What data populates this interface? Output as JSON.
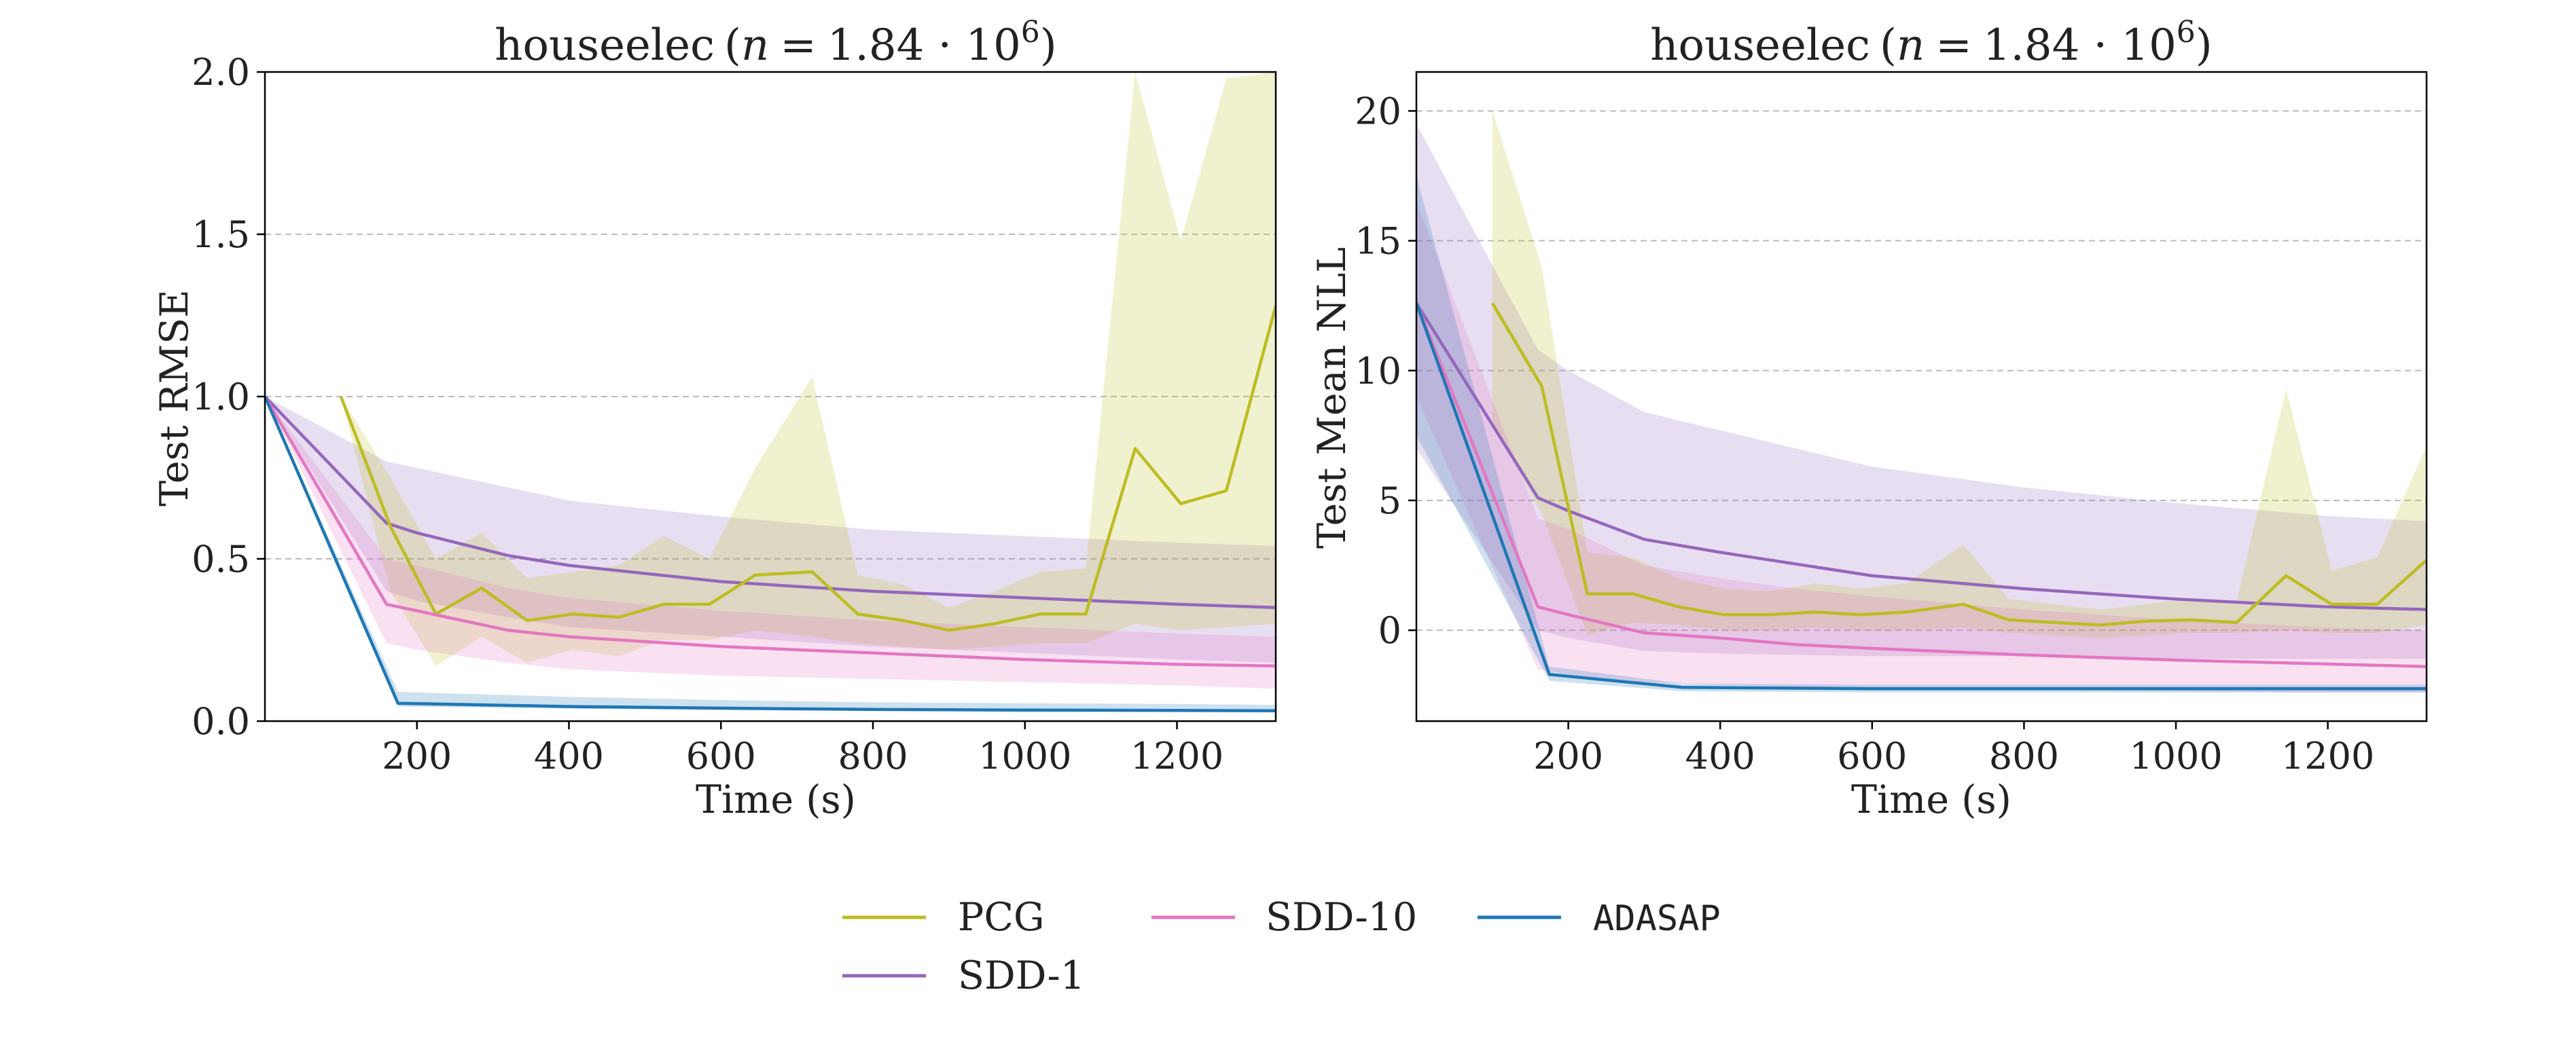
{
  "chart_data": [
    {
      "type": "line",
      "title": "houseelec (n = 1.84 · 10^6)",
      "title_parts": {
        "dataset": "houseelec",
        "n_label": "n",
        "equals": "=",
        "base": "1.84 · 10",
        "exponent": "6"
      },
      "xlabel": "Time (s)",
      "ylabel": "Test RMSE",
      "xlim": [
        0,
        1330
      ],
      "ylim": [
        0,
        2.0
      ],
      "xticks": [
        200,
        400,
        600,
        800,
        1000,
        1200
      ],
      "yticks": [
        0.0,
        0.5,
        1.0,
        1.5,
        2.0
      ],
      "ytick_labels": [
        "0.0",
        "0.5",
        "1.0",
        "1.5",
        "2.0"
      ],
      "grid": "horizontal dashed",
      "series": [
        {
          "name": "SDD-1",
          "color": "#9467bd",
          "x": [
            0,
            160,
            200,
            320,
            400,
            600,
            800,
            1000,
            1200,
            1330
          ],
          "y": [
            1.0,
            0.61,
            0.58,
            0.51,
            0.48,
            0.43,
            0.4,
            0.38,
            0.36,
            0.35
          ],
          "lower": [
            1.0,
            0.4,
            0.37,
            0.32,
            0.29,
            0.26,
            0.23,
            0.21,
            0.19,
            0.18
          ],
          "upper": [
            1.0,
            0.8,
            0.78,
            0.72,
            0.68,
            0.63,
            0.59,
            0.57,
            0.55,
            0.54
          ]
        },
        {
          "name": "PCG",
          "color": "#bcbd22",
          "x": [
            100,
            165,
            225,
            285,
            345,
            405,
            465,
            525,
            585,
            645,
            720,
            780,
            840,
            900,
            960,
            1020,
            1080,
            1145,
            1205,
            1265,
            1330
          ],
          "y": [
            1.0,
            0.6,
            0.33,
            0.41,
            0.31,
            0.33,
            0.32,
            0.36,
            0.36,
            0.45,
            0.46,
            0.33,
            0.31,
            0.28,
            0.3,
            0.33,
            0.33,
            0.84,
            0.67,
            0.71,
            1.28
          ],
          "lower": [
            1.0,
            0.4,
            0.17,
            0.26,
            0.18,
            0.22,
            0.2,
            0.25,
            0.25,
            0.28,
            0.26,
            0.24,
            0.23,
            0.22,
            0.23,
            0.24,
            0.24,
            0.3,
            0.28,
            0.29,
            0.3
          ],
          "upper": [
            1.0,
            0.75,
            0.5,
            0.58,
            0.44,
            0.46,
            0.48,
            0.57,
            0.5,
            0.78,
            1.06,
            0.45,
            0.42,
            0.35,
            0.4,
            0.46,
            0.47,
            2.0,
            1.48,
            1.98,
            2.0
          ]
        },
        {
          "name": "SDD-10",
          "color": "#e377c2",
          "x": [
            0,
            160,
            200,
            320,
            400,
            600,
            800,
            1000,
            1200,
            1330
          ],
          "y": [
            1.0,
            0.36,
            0.34,
            0.28,
            0.26,
            0.23,
            0.21,
            0.19,
            0.175,
            0.17
          ],
          "lower": [
            1.0,
            0.24,
            0.22,
            0.18,
            0.16,
            0.14,
            0.13,
            0.12,
            0.11,
            0.1
          ],
          "upper": [
            1.0,
            0.5,
            0.48,
            0.41,
            0.38,
            0.34,
            0.31,
            0.29,
            0.27,
            0.26
          ]
        },
        {
          "name": "ADASAP",
          "color": "#1f77b4",
          "x": [
            0,
            175,
            400,
            600,
            800,
            1000,
            1200,
            1330
          ],
          "y": [
            1.0,
            0.055,
            0.045,
            0.04,
            0.036,
            0.034,
            0.033,
            0.032
          ],
          "lower": [
            1.0,
            0.045,
            0.038,
            0.034,
            0.031,
            0.029,
            0.028,
            0.027
          ],
          "upper": [
            1.0,
            0.09,
            0.075,
            0.065,
            0.058,
            0.055,
            0.053,
            0.05
          ]
        }
      ]
    },
    {
      "type": "line",
      "title": "houseelec (n = 1.84 · 10^6)",
      "title_parts": {
        "dataset": "houseelec",
        "n_label": "n",
        "equals": "=",
        "base": "1.84 · 10",
        "exponent": "6"
      },
      "xlabel": "Time (s)",
      "ylabel": "Test Mean NLL",
      "xlim": [
        0,
        1330
      ],
      "ylim": [
        -3.5,
        21.5
      ],
      "xticks": [
        200,
        400,
        600,
        800,
        1000,
        1200
      ],
      "yticks": [
        0,
        5,
        10,
        15,
        20
      ],
      "ytick_labels": [
        "0",
        "5",
        "10",
        "15",
        "20"
      ],
      "grid": "horizontal dashed",
      "series": [
        {
          "name": "SDD-1",
          "color": "#9467bd",
          "x": [
            0,
            160,
            200,
            300,
            400,
            600,
            800,
            1000,
            1200,
            1330
          ],
          "y": [
            12.6,
            5.1,
            4.6,
            3.5,
            3.0,
            2.1,
            1.6,
            1.2,
            0.9,
            0.8
          ],
          "lower": [
            7.0,
            0.0,
            -0.3,
            -0.8,
            -0.9,
            -1.0,
            -1.0,
            -1.1,
            -1.1,
            -1.1
          ],
          "upper": [
            19.5,
            10.8,
            10.0,
            8.4,
            7.7,
            6.3,
            5.5,
            4.9,
            4.4,
            4.2
          ]
        },
        {
          "name": "PCG",
          "color": "#bcbd22",
          "x": [
            100,
            165,
            225,
            285,
            345,
            405,
            465,
            525,
            585,
            645,
            720,
            780,
            840,
            900,
            960,
            1020,
            1080,
            1145,
            1205,
            1265,
            1330
          ],
          "y": [
            12.6,
            9.4,
            1.4,
            1.4,
            0.9,
            0.6,
            0.6,
            0.7,
            0.6,
            0.7,
            1.0,
            0.4,
            0.3,
            0.2,
            0.35,
            0.4,
            0.3,
            2.1,
            1.0,
            1.0,
            2.7
          ],
          "lower": [
            8.0,
            4.5,
            -0.2,
            0.3,
            0.2,
            0.0,
            0.0,
            0.1,
            0.0,
            0.0,
            0.1,
            -0.1,
            -0.2,
            -0.3,
            -0.2,
            -0.1,
            -0.1,
            0.0,
            -0.1,
            -0.1,
            0.2
          ],
          "upper": [
            20.0,
            14.0,
            3.0,
            2.8,
            2.0,
            1.6,
            1.5,
            1.8,
            1.6,
            1.8,
            3.3,
            1.2,
            1.0,
            0.8,
            1.0,
            1.2,
            1.1,
            9.3,
            2.3,
            2.8,
            7.1
          ]
        },
        {
          "name": "SDD-10",
          "color": "#e377c2",
          "x": [
            0,
            160,
            200,
            300,
            400,
            500,
            600,
            800,
            1000,
            1200,
            1330
          ],
          "y": [
            12.6,
            0.9,
            0.6,
            -0.1,
            -0.3,
            -0.55,
            -0.7,
            -0.95,
            -1.15,
            -1.3,
            -1.4
          ],
          "lower": [
            9.0,
            -1.5,
            -1.7,
            -2.0,
            -2.1,
            -2.2,
            -2.25,
            -2.3,
            -2.35,
            -2.4,
            -2.4
          ],
          "upper": [
            16.5,
            4.3,
            3.9,
            2.5,
            2.0,
            1.6,
            1.3,
            0.8,
            0.4,
            0.1,
            0.0
          ]
        },
        {
          "name": "ADASAP",
          "color": "#1f77b4",
          "x": [
            0,
            175,
            350,
            600,
            800,
            1000,
            1200,
            1330
          ],
          "y": [
            12.6,
            -1.7,
            -2.2,
            -2.25,
            -2.25,
            -2.25,
            -2.25,
            -2.25
          ],
          "lower": [
            7.5,
            -1.95,
            -2.35,
            -2.4,
            -2.4,
            -2.4,
            -2.4,
            -2.4
          ],
          "upper": [
            17.5,
            -1.4,
            -2.05,
            -2.1,
            -2.1,
            -2.1,
            -2.1,
            -2.1
          ]
        }
      ]
    }
  ],
  "legend": {
    "placement": "bottom-center",
    "entries": [
      {
        "label": "PCG",
        "color": "#bcbd22",
        "monospace": false
      },
      {
        "label": "SDD-10",
        "color": "#e377c2",
        "monospace": false
      },
      {
        "label": "ADASAP",
        "color": "#1f77b4",
        "monospace": true
      },
      {
        "label": "SDD-1",
        "color": "#9467bd",
        "monospace": false
      }
    ]
  }
}
